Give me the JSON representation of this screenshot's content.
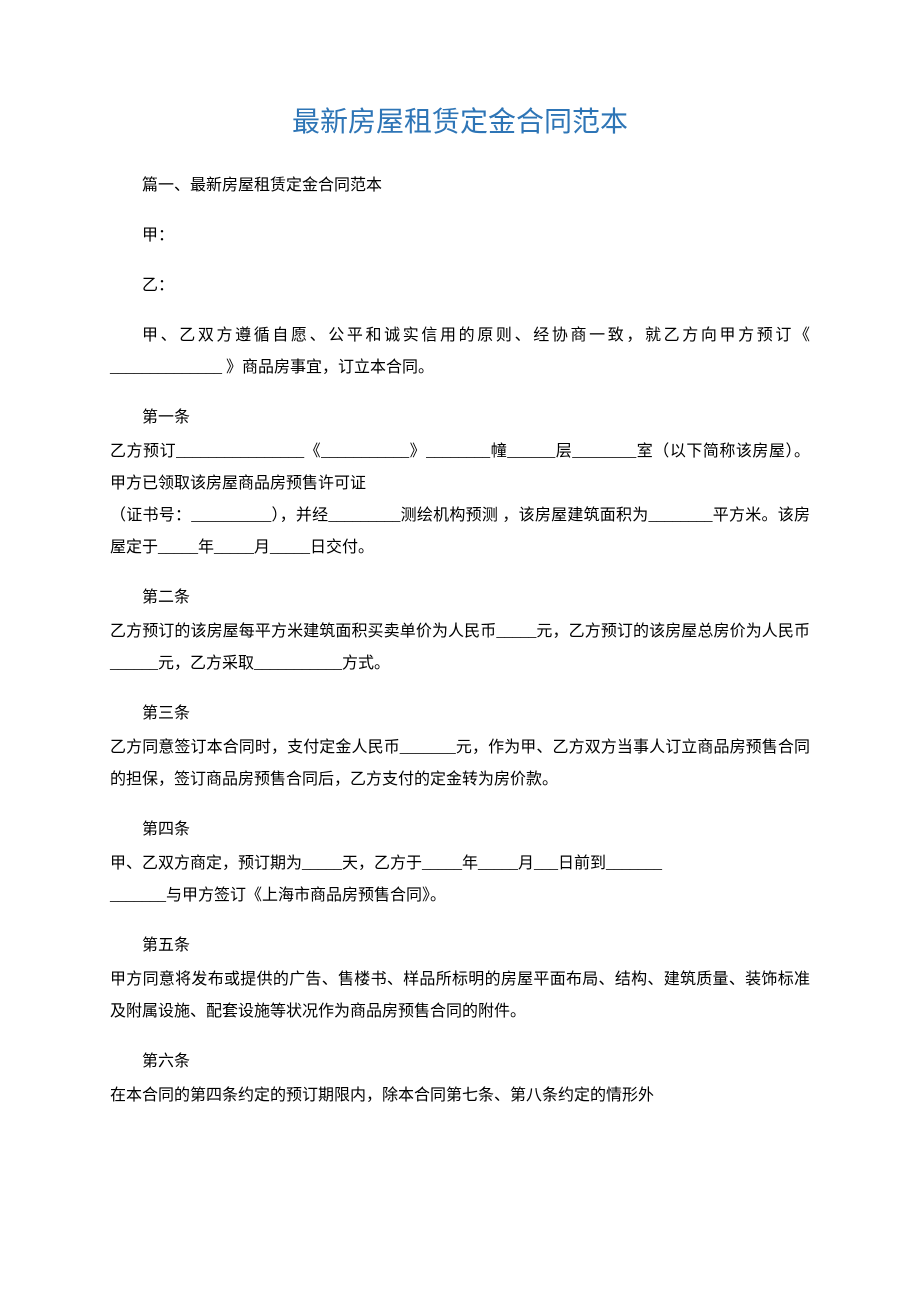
{
  "title": "最新房屋租赁定金合同范本",
  "intro_section": "篇一、最新房屋租赁定金合同范本",
  "party_a": "甲：",
  "party_b": "乙：",
  "preamble": "甲、乙双方遵循自愿、公平和诚实信用的原则、经协商一致，就乙方向甲方预订《 ______________ 》商品房事宜，订立本合同。",
  "article1": {
    "label": "第一条",
    "body": "乙方预订________________《___________》________幢______层________室（以下简称该房屋）。甲方已领取该房屋商品房预售许可证\n（证书号：__________），并经_________测绘机构预测 ，该房屋建筑面积为________平方米。该房屋定于_____年_____月_____日交付。"
  },
  "article2": {
    "label": "第二条",
    "body": "乙方预订的该房屋每平方米建筑面积买卖单价为人民币_____元，乙方预订的该房屋总房价为人民币______元，乙方采取___________方式。"
  },
  "article3": {
    "label": "第三条",
    "body": "乙方同意签订本合同时，支付定金人民币_______元，作为甲、乙方双方当事人订立商品房预售合同的担保，签订商品房预售合同后，乙方支付的定金转为房价款。"
  },
  "article4": {
    "label": "第四条",
    "body": "甲、乙双方商定，预订期为_____天，乙方于_____年_____月___日前到_______\n_______与甲方签订《上海市商品房预售合同》。"
  },
  "article5": {
    "label": "第五条",
    "body": "甲方同意将发布或提供的广告、售楼书、样品所标明的房屋平面布局、结构、建筑质量、装饰标准及附属设施、配套设施等状况作为商品房预售合同的附件。"
  },
  "article6": {
    "label": "第六条",
    "body": "在本合同的第四条约定的预订期限内，除本合同第七条、第八条约定的情形外"
  }
}
